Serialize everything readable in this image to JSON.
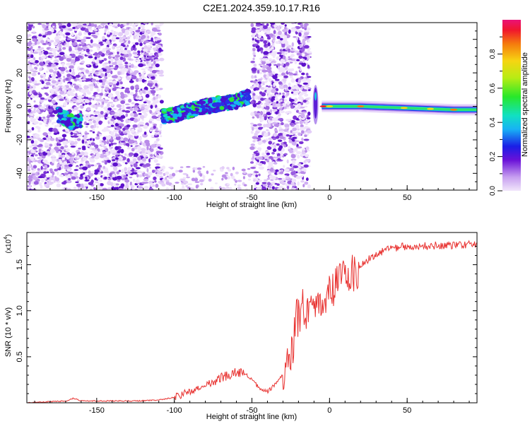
{
  "title": "C2E1.2024.359.10.17.R16",
  "chart_data": [
    {
      "type": "heatmap",
      "xlabel": "Height of straight line (km)",
      "ylabel": "Frequency (Hz)",
      "xlim": [
        -195,
        95
      ],
      "ylim": [
        -50,
        50
      ],
      "xticks": [
        -150,
        -100,
        -50,
        0,
        50
      ],
      "yticks": [
        -40,
        -20,
        0,
        20,
        40
      ],
      "colorbar": {
        "label": "Normalized spectral amplitude",
        "range": [
          0,
          1
        ],
        "ticks": [
          "0.0",
          "0.2",
          "0.4",
          "0.6",
          "0.8"
        ]
      },
      "features": [
        {
          "name": "diffuse noise",
          "x_range": [
            -195,
            -108
          ],
          "freq_range": [
            -50,
            50
          ]
        },
        {
          "name": "diffuse noise",
          "x_range": [
            -50,
            -13
          ],
          "freq_range": [
            -50,
            50
          ]
        },
        {
          "name": "ridge",
          "x": [
            -175,
            -165,
            -160
          ],
          "freq": [
            -5,
            -10,
            -9
          ]
        },
        {
          "name": "ridge",
          "x": [
            -108,
            -100,
            -80,
            -60,
            -52
          ],
          "freq": [
            -6,
            -5,
            0,
            3,
            6
          ]
        },
        {
          "name": "spike",
          "x": [
            -10,
            -8
          ],
          "freq": [
            8,
            -5
          ]
        },
        {
          "name": "strong ridge",
          "x": [
            -5,
            20,
            50,
            80,
            95
          ],
          "freq": [
            0,
            0,
            -1,
            -2,
            -2
          ]
        }
      ]
    },
    {
      "type": "line",
      "xlabel": "Height of straight line (km)",
      "ylabel": "SNR (10 * v/v)",
      "y_multiplier": "(x10",
      "y_multiplier_exp": "4",
      "xlim": [
        -195,
        95
      ],
      "ylim": [
        0,
        1.85
      ],
      "xticks": [
        -150,
        -100,
        -50,
        0,
        50
      ],
      "yticks": [
        "0.5",
        "1.0",
        "1.5"
      ],
      "color": "#e8312f",
      "series": [
        {
          "x": [
            -195,
            -170,
            -165,
            -160,
            -150,
            -125,
            -110,
            -100,
            -90,
            -80,
            -70,
            -60,
            -55,
            -50,
            -45,
            -40,
            -35,
            -30,
            -27,
            -25,
            -22,
            -20,
            -18,
            -15,
            -10,
            -5,
            0,
            5,
            10,
            15,
            20,
            25,
            30,
            35,
            40,
            50,
            60,
            70,
            80,
            90,
            95
          ],
          "y": [
            0.0,
            0.02,
            0.05,
            0.02,
            0.02,
            0.02,
            0.03,
            0.06,
            0.12,
            0.18,
            0.27,
            0.33,
            0.32,
            0.25,
            0.15,
            0.12,
            0.2,
            0.3,
            0.4,
            0.5,
            0.8,
            0.9,
            1.05,
            1.0,
            1.0,
            1.1,
            1.2,
            1.3,
            1.4,
            1.4,
            1.5,
            1.56,
            1.62,
            1.65,
            1.68,
            1.7,
            1.7,
            1.71,
            1.71,
            1.72,
            1.72
          ]
        }
      ]
    }
  ]
}
